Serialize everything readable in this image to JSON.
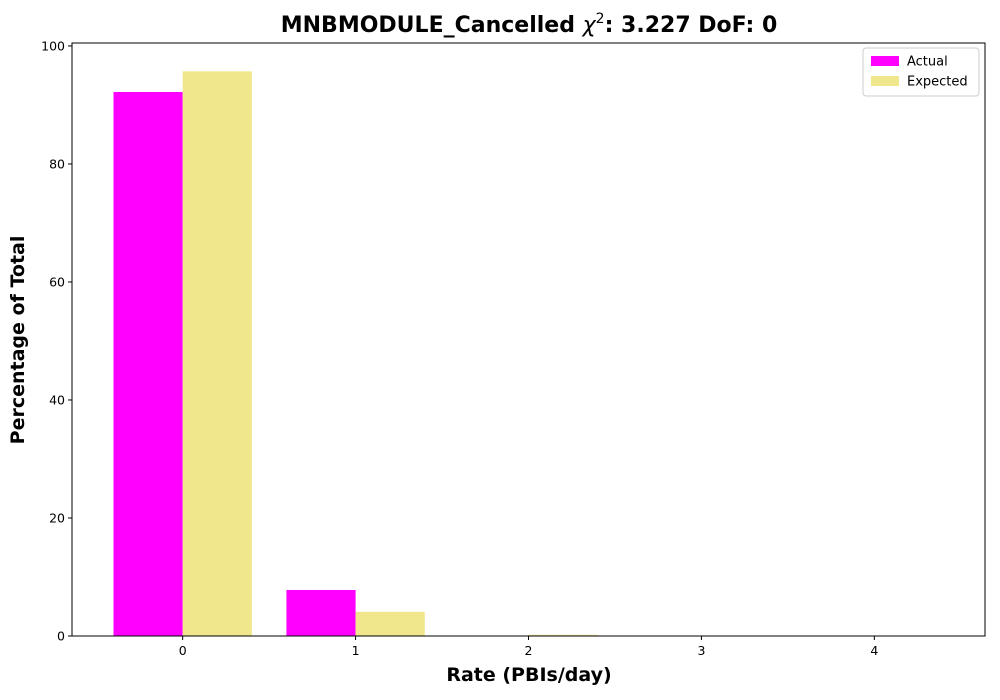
{
  "chart_data": {
    "type": "bar",
    "title": {
      "prefix": "MNBMODULE_Cancelled ",
      "chi_symbol": "χ",
      "chi_sup": "2",
      "suffix": ": 3.227 DoF: 0"
    },
    "xlabel": "Rate (PBIs/day)",
    "ylabel": "Percentage of Total",
    "categories": [
      "0",
      "1",
      "2",
      "3",
      "4"
    ],
    "x": [
      0,
      1,
      2,
      3,
      4
    ],
    "series": [
      {
        "name": "Actual",
        "color": "#ff00ff",
        "values": [
          92.2,
          7.8,
          0,
          0,
          0
        ]
      },
      {
        "name": "Expected",
        "color": "#f0e68c",
        "values": [
          95.7,
          4.1,
          0.2,
          0.0,
          0.0
        ]
      }
    ],
    "ylim": [
      0,
      100.5
    ],
    "yticks": [
      0,
      20,
      40,
      60,
      80,
      100
    ],
    "xlim": [
      -0.64,
      4.64
    ],
    "grid": false,
    "legend": "top-right"
  }
}
